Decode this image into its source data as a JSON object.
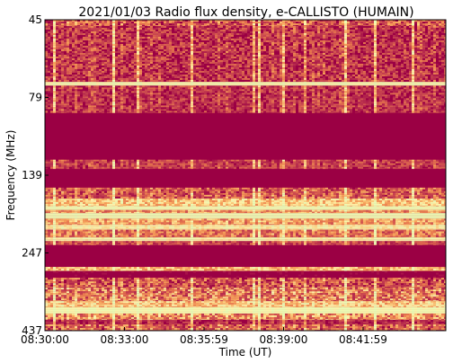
{
  "chart_data": {
    "type": "heatmap",
    "title": "2021/01/03  Radio flux density, e-CALLISTO (HUMAIN)",
    "xlabel": "Time (UT)",
    "ylabel": "Frequency (MHz)",
    "x_ticks": [
      "08:30:00",
      "08:33:00",
      "08:35:59",
      "08:39:00",
      "08:41:59"
    ],
    "y_ticks": [
      "45",
      "79",
      "139",
      "247",
      "437"
    ],
    "colormap": [
      "#9b0044",
      "#b5284d",
      "#cf4f50",
      "#e8784e",
      "#f8a55c",
      "#fdd27f",
      "#fff2a8",
      "#eafbb4"
    ],
    "bands": [
      {
        "from": 0.0,
        "to": 0.02,
        "level": 0.3,
        "noise": 0.3
      },
      {
        "from": 0.02,
        "to": 0.2,
        "level": 0.18,
        "noise": 0.25
      },
      {
        "from": 0.2,
        "to": 0.212,
        "level": 0.92,
        "noise": 0.06
      },
      {
        "from": 0.212,
        "to": 0.3,
        "level": 0.18,
        "noise": 0.22
      },
      {
        "from": 0.3,
        "to": 0.45,
        "level": 0.0,
        "noise": 0.03
      },
      {
        "from": 0.45,
        "to": 0.48,
        "level": 0.22,
        "noise": 0.2
      },
      {
        "from": 0.48,
        "to": 0.54,
        "level": 0.0,
        "noise": 0.03
      },
      {
        "from": 0.54,
        "to": 0.575,
        "level": 0.32,
        "noise": 0.28
      },
      {
        "from": 0.575,
        "to": 0.6,
        "level": 0.7,
        "noise": 0.25
      },
      {
        "from": 0.6,
        "to": 0.612,
        "level": 0.95,
        "noise": 0.05
      },
      {
        "from": 0.612,
        "to": 0.622,
        "level": 0.55,
        "noise": 0.25
      },
      {
        "from": 0.622,
        "to": 0.64,
        "level": 0.97,
        "noise": 0.04
      },
      {
        "from": 0.64,
        "to": 0.66,
        "level": 0.55,
        "noise": 0.25
      },
      {
        "from": 0.66,
        "to": 0.675,
        "level": 0.85,
        "noise": 0.12
      },
      {
        "from": 0.675,
        "to": 0.7,
        "level": 0.4,
        "noise": 0.25
      },
      {
        "from": 0.7,
        "to": 0.712,
        "level": 0.88,
        "noise": 0.1
      },
      {
        "from": 0.712,
        "to": 0.725,
        "level": 0.25,
        "noise": 0.2
      },
      {
        "from": 0.725,
        "to": 0.795,
        "level": 0.0,
        "noise": 0.03
      },
      {
        "from": 0.795,
        "to": 0.808,
        "level": 0.65,
        "noise": 0.2
      },
      {
        "from": 0.808,
        "to": 0.83,
        "level": 0.02,
        "noise": 0.05
      },
      {
        "from": 0.83,
        "to": 0.862,
        "level": 0.3,
        "noise": 0.3
      },
      {
        "from": 0.862,
        "to": 0.905,
        "level": 0.45,
        "noise": 0.35
      },
      {
        "from": 0.905,
        "to": 0.925,
        "level": 0.7,
        "noise": 0.25
      },
      {
        "from": 0.925,
        "to": 0.945,
        "level": 0.93,
        "noise": 0.06
      },
      {
        "from": 0.945,
        "to": 0.965,
        "level": 0.5,
        "noise": 0.3
      },
      {
        "from": 0.965,
        "to": 0.98,
        "level": 0.15,
        "noise": 0.15
      },
      {
        "from": 0.98,
        "to": 1.0,
        "level": 0.35,
        "noise": 0.3
      }
    ]
  }
}
